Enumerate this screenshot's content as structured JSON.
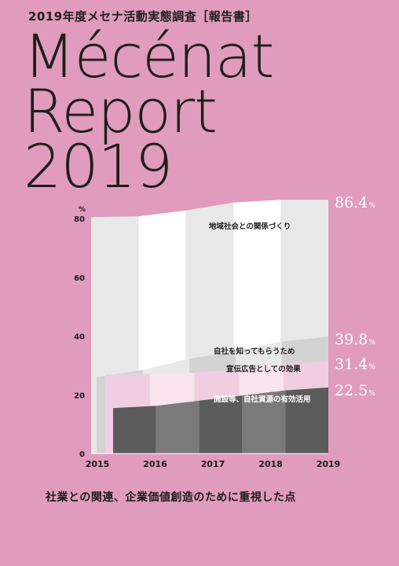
{
  "cover": {
    "subtitle": "2019年度メセナ活動実態調査［報告書］",
    "title_lines": [
      "Mécénat",
      "Report",
      "2019"
    ],
    "caption": "社業との関連、企業価値創造のために重視した点",
    "background": "#e09bbd"
  },
  "chart_data": {
    "type": "area",
    "title": "",
    "unit": "%",
    "x": [
      "2015",
      "2016",
      "2017",
      "2018",
      "2019"
    ],
    "y_ticks": [
      0,
      20,
      40,
      60,
      80
    ],
    "ylim": [
      0,
      86.4
    ],
    "grid": true,
    "series": [
      {
        "name": "地域社会との関係づくり",
        "values": [
          80.5,
          81,
          84.5,
          86.4,
          86.4
        ],
        "end_label": "86.4",
        "colors": [
          "#e8e8e8",
          "#ffffff"
        ]
      },
      {
        "name": "自社を知ってもらうため",
        "values": [
          26,
          31,
          33.5,
          36.5,
          39.8
        ],
        "end_label": "39.8",
        "colors": [
          "#d3d3d3",
          "#e8e8e8"
        ]
      },
      {
        "name": "宣伝広告としての効果",
        "values": [
          27,
          27,
          28,
          29.5,
          31.4
        ],
        "end_label": "31.4",
        "colors": [
          "#f0cde0",
          "#f8e3ef"
        ]
      },
      {
        "name": "施設等、自社資源の有効活用",
        "values": [
          15.5,
          17,
          19,
          20.5,
          22.5
        ],
        "end_label": "22.5",
        "colors": [
          "#5b5b5b",
          "#7a7a7a"
        ]
      }
    ]
  }
}
